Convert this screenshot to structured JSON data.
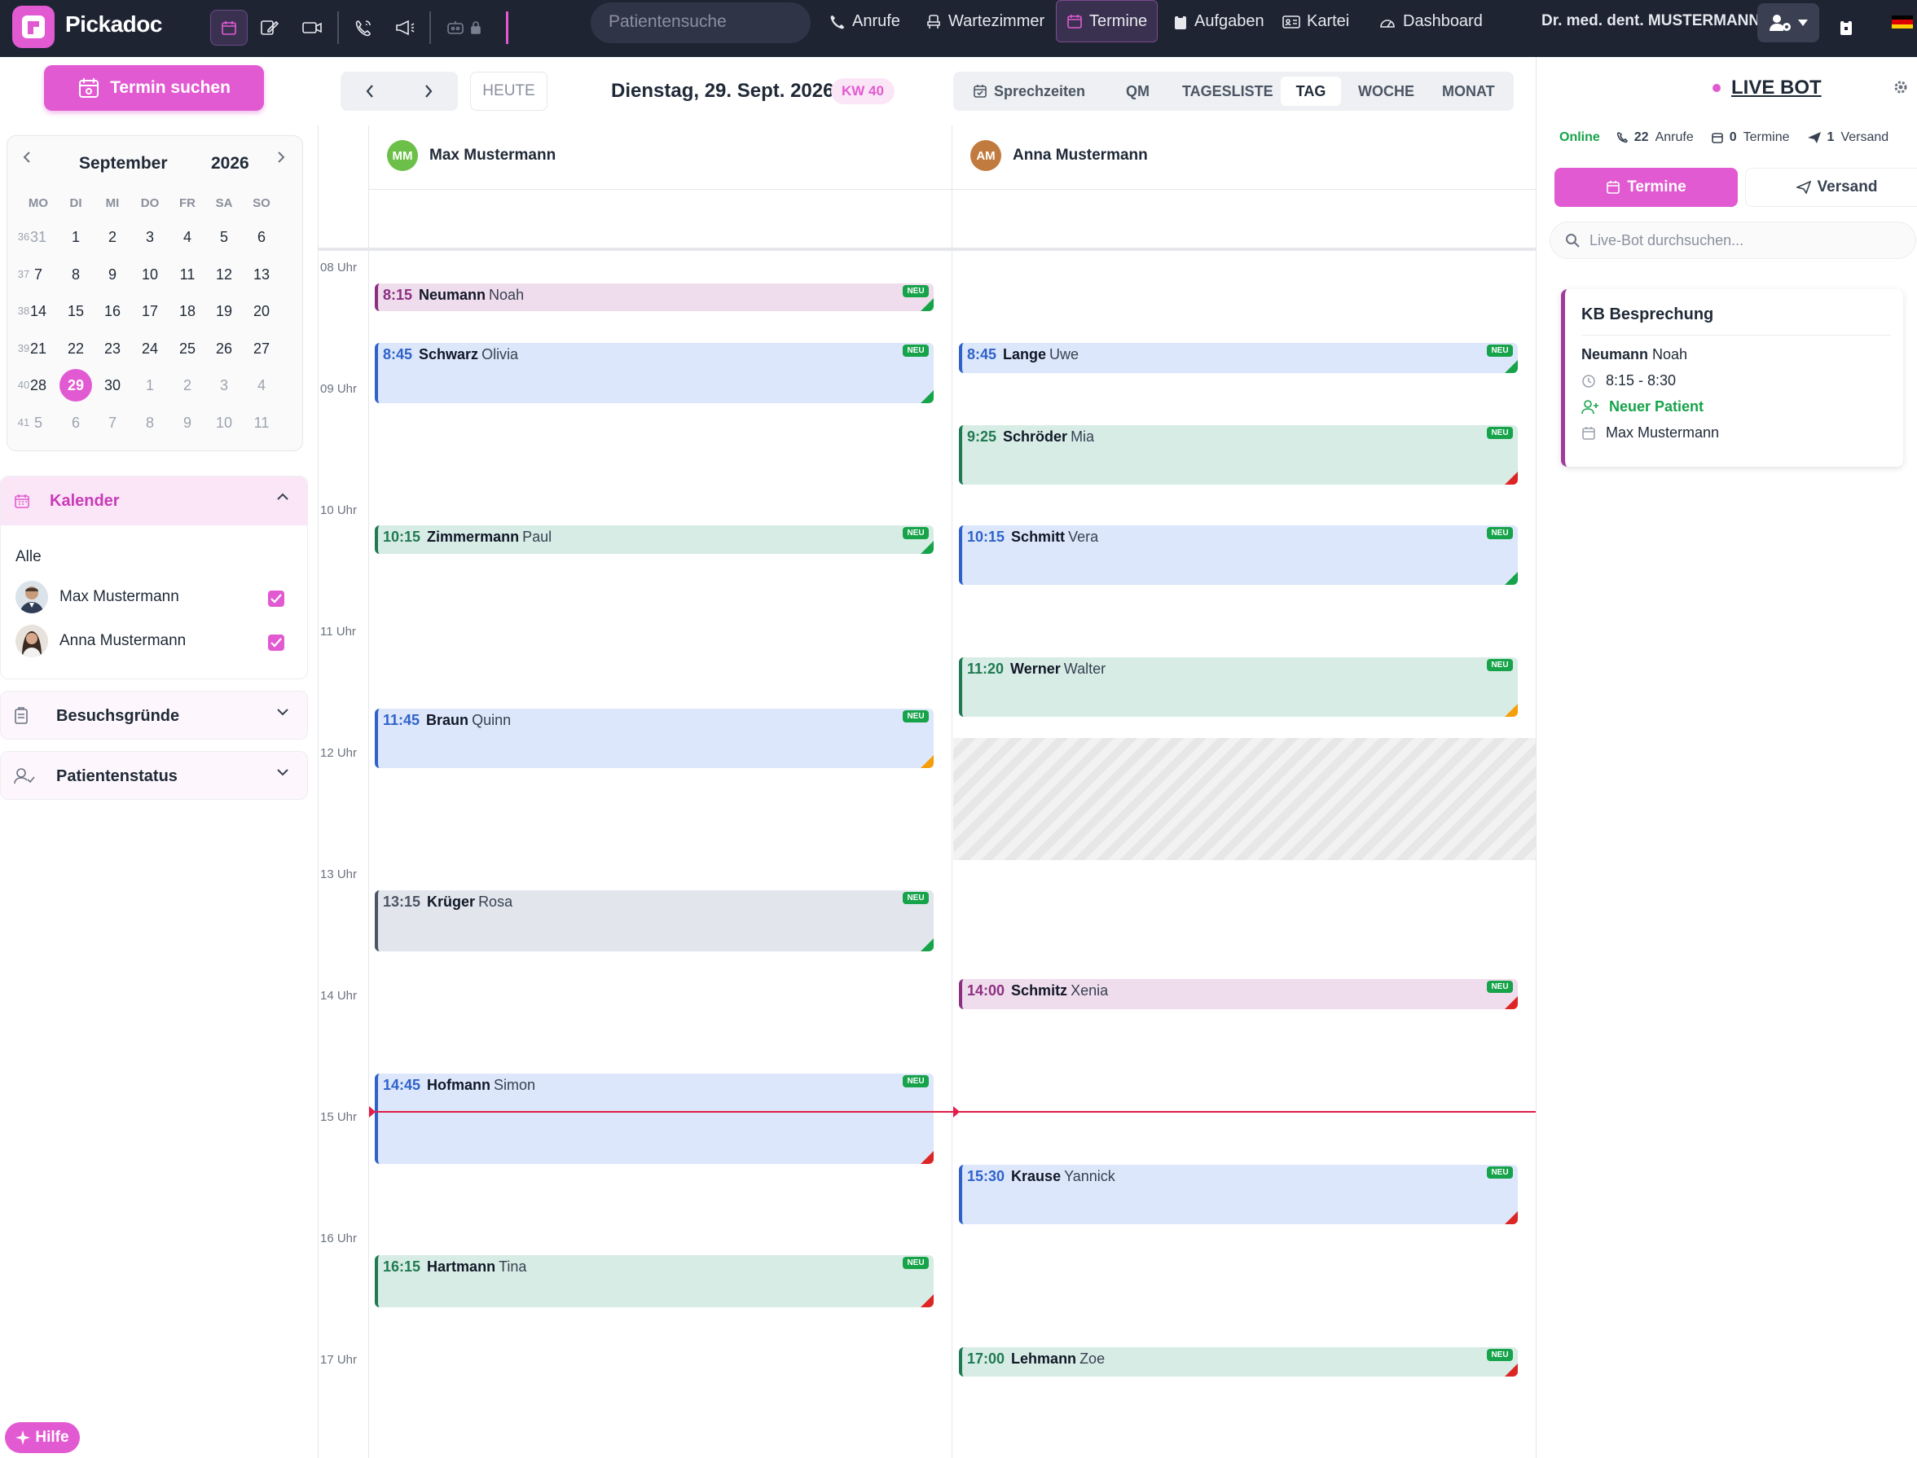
{
  "app": {
    "name": "Pickadoc"
  },
  "topbar": {
    "search_placeholder": "Patientensuche",
    "nav": [
      {
        "label": "Anrufe"
      },
      {
        "label": "Wartezimmer"
      },
      {
        "label": "Termine"
      },
      {
        "label": "Aufgaben"
      },
      {
        "label": "Kartei"
      },
      {
        "label": "Dashboard"
      }
    ],
    "doctor": "Dr. med. dent. MUSTERMANN"
  },
  "left": {
    "termin_button": "Termin suchen",
    "mini_calendar": {
      "month": "September",
      "year": "2026",
      "weekdays": [
        "MO",
        "DI",
        "MI",
        "DO",
        "FR",
        "SA",
        "SO"
      ],
      "weeks": [
        {
          "wk": "36",
          "days": [
            "31",
            "1",
            "2",
            "3",
            "4",
            "5",
            "6"
          ]
        },
        {
          "wk": "37",
          "days": [
            "7",
            "8",
            "9",
            "10",
            "11",
            "12",
            "13"
          ]
        },
        {
          "wk": "38",
          "days": [
            "14",
            "15",
            "16",
            "17",
            "18",
            "19",
            "20"
          ]
        },
        {
          "wk": "39",
          "days": [
            "21",
            "22",
            "23",
            "24",
            "25",
            "26",
            "27"
          ]
        },
        {
          "wk": "40",
          "days": [
            "28",
            "29",
            "30",
            "1",
            "2",
            "3",
            "4"
          ]
        },
        {
          "wk": "41",
          "days": [
            "5",
            "6",
            "7",
            "8",
            "9",
            "10",
            "11"
          ]
        }
      ],
      "selected_day": "29"
    },
    "kalender": {
      "title": "Kalender",
      "all_label": "Alle",
      "items": [
        {
          "name": "Max Mustermann",
          "checked": true
        },
        {
          "name": "Anna Mustermann",
          "checked": true
        }
      ]
    },
    "besuchsgruende": "Besuchsgründe",
    "patientenstatus": "Patientenstatus",
    "hilfe": "Hilfe"
  },
  "calendar": {
    "today_label": "HEUTE",
    "date_title": "Dienstag, 29. Sept. 2026",
    "kw": "KW 40",
    "views": [
      {
        "label": "Sprechzeiten"
      },
      {
        "label": "QM"
      },
      {
        "label": "TAGESLISTE"
      },
      {
        "label": "TAG",
        "active": true
      },
      {
        "label": "WOCHE"
      },
      {
        "label": "MONAT"
      }
    ],
    "columns": [
      {
        "initials": "MM",
        "name": "Max Mustermann",
        "color": "#6cc04a"
      },
      {
        "initials": "AM",
        "name": "Anna Mustermann",
        "color": "#c27b3e"
      }
    ],
    "hours": [
      "08 Uhr",
      "09 Uhr",
      "10 Uhr",
      "11 Uhr",
      "12 Uhr",
      "13 Uhr",
      "14 Uhr",
      "15 Uhr",
      "16 Uhr",
      "17 Uhr"
    ],
    "badge": "NEU",
    "events_col1": [
      {
        "time": "8:15",
        "last": "Neumann",
        "first": "Noah"
      },
      {
        "time": "8:45",
        "last": "Schwarz",
        "first": "Olivia"
      },
      {
        "time": "10:15",
        "last": "Zimmermann",
        "first": "Paul"
      },
      {
        "time": "11:45",
        "last": "Braun",
        "first": "Quinn"
      },
      {
        "time": "13:15",
        "last": "Krüger",
        "first": "Rosa"
      },
      {
        "time": "14:45",
        "last": "Hofmann",
        "first": "Simon"
      },
      {
        "time": "16:15",
        "last": "Hartmann",
        "first": "Tina"
      }
    ],
    "events_col2": [
      {
        "time": "8:45",
        "last": "Lange",
        "first": "Uwe"
      },
      {
        "time": "9:25",
        "last": "Schröder",
        "first": "Mia"
      },
      {
        "time": "10:15",
        "last": "Schmitt",
        "first": "Vera"
      },
      {
        "time": "11:20",
        "last": "Werner",
        "first": "Walter"
      },
      {
        "time": "14:00",
        "last": "Schmitz",
        "first": "Xenia"
      },
      {
        "time": "15:30",
        "last": "Krause",
        "first": "Yannick"
      },
      {
        "time": "17:00",
        "last": "Lehmann",
        "first": "Zoe"
      }
    ]
  },
  "right": {
    "title": "LIVE BOT",
    "status": "Online",
    "calls_count": "22",
    "calls_label": "Anrufe",
    "termine_count": "0",
    "termine_label": "Termine",
    "versand_count": "1",
    "versand_label": "Versand",
    "tab_termine": "Termine",
    "tab_versand": "Versand",
    "search_placeholder": "Live-Bot durchsuchen...",
    "card": {
      "title": "KB Besprechung",
      "last": "Neumann",
      "first": "Noah",
      "time": "8:15 - 8:30",
      "status": "Neuer Patient",
      "calendar": "Max Mustermann"
    }
  }
}
